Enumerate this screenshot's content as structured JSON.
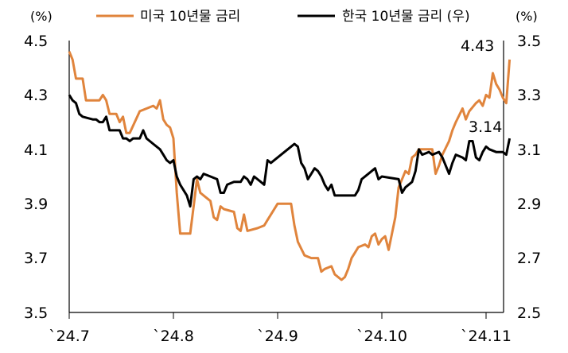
{
  "chart_data": {
    "type": "line",
    "legend_position": "top",
    "grid": false,
    "x_ticks": [
      "`24.7",
      "`24.8",
      "`24.9",
      "`24.10",
      "`24.11"
    ],
    "left_axis": {
      "unit": "(%)",
      "ylim": [
        3.5,
        4.5
      ],
      "ticks": [
        "4.5",
        "4.3",
        "4.1",
        "3.9",
        "3.7",
        "3.5"
      ]
    },
    "right_axis": {
      "unit": "(%)",
      "ylim": [
        2.5,
        3.5
      ],
      "ticks": [
        "3.5",
        "3.3",
        "3.1",
        "2.9",
        "2.7",
        "2.5"
      ]
    },
    "series": [
      {
        "name": "미국 10년물 금리",
        "axis": "left",
        "color": "#E0843C",
        "end_label": "4.43",
        "points": [
          [
            "2024-07-01",
            4.46
          ],
          [
            "2024-07-02",
            4.43
          ],
          [
            "2024-07-03",
            4.36
          ],
          [
            "2024-07-05",
            4.36
          ],
          [
            "2024-07-06",
            4.28
          ],
          [
            "2024-07-08",
            4.28
          ],
          [
            "2024-07-10",
            4.28
          ],
          [
            "2024-07-11",
            4.3
          ],
          [
            "2024-07-12",
            4.28
          ],
          [
            "2024-07-13",
            4.23
          ],
          [
            "2024-07-15",
            4.23
          ],
          [
            "2024-07-16",
            4.2
          ],
          [
            "2024-07-17",
            4.22
          ],
          [
            "2024-07-18",
            4.16
          ],
          [
            "2024-07-19",
            4.16
          ],
          [
            "2024-07-22",
            4.24
          ],
          [
            "2024-07-24",
            4.25
          ],
          [
            "2024-07-26",
            4.26
          ],
          [
            "2024-07-27",
            4.25
          ],
          [
            "2024-07-28",
            4.28
          ],
          [
            "2024-07-29",
            4.21
          ],
          [
            "2024-07-30",
            4.19
          ],
          [
            "2024-07-31",
            4.18
          ],
          [
            "2024-08-01",
            4.14
          ],
          [
            "2024-08-02",
            3.94
          ],
          [
            "2024-08-03",
            3.79
          ],
          [
            "2024-08-05",
            3.79
          ],
          [
            "2024-08-06",
            3.79
          ],
          [
            "2024-08-07",
            3.89
          ],
          [
            "2024-08-08",
            3.99
          ],
          [
            "2024-08-09",
            3.94
          ],
          [
            "2024-08-10",
            3.93
          ],
          [
            "2024-08-12",
            3.91
          ],
          [
            "2024-08-13",
            3.85
          ],
          [
            "2024-08-14",
            3.84
          ],
          [
            "2024-08-15",
            3.89
          ],
          [
            "2024-08-16",
            3.88
          ],
          [
            "2024-08-19",
            3.87
          ],
          [
            "2024-08-20",
            3.81
          ],
          [
            "2024-08-21",
            3.8
          ],
          [
            "2024-08-22",
            3.86
          ],
          [
            "2024-08-23",
            3.8
          ],
          [
            "2024-08-26",
            3.81
          ],
          [
            "2024-08-28",
            3.82
          ],
          [
            "2024-08-29",
            3.84
          ],
          [
            "2024-08-30",
            3.86
          ],
          [
            "2024-09-01",
            3.9
          ],
          [
            "2024-09-03",
            3.9
          ],
          [
            "2024-09-05",
            3.9
          ],
          [
            "2024-09-06",
            3.82
          ],
          [
            "2024-09-07",
            3.76
          ],
          [
            "2024-09-09",
            3.71
          ],
          [
            "2024-09-11",
            3.7
          ],
          [
            "2024-09-13",
            3.7
          ],
          [
            "2024-09-14",
            3.65
          ],
          [
            "2024-09-15",
            3.66
          ],
          [
            "2024-09-17",
            3.67
          ],
          [
            "2024-09-18",
            3.64
          ],
          [
            "2024-09-20",
            3.62
          ],
          [
            "2024-09-21",
            3.63
          ],
          [
            "2024-09-22",
            3.66
          ],
          [
            "2024-09-23",
            3.7
          ],
          [
            "2024-09-24",
            3.72
          ],
          [
            "2024-09-25",
            3.74
          ],
          [
            "2024-09-27",
            3.75
          ],
          [
            "2024-09-28",
            3.74
          ],
          [
            "2024-09-29",
            3.78
          ],
          [
            "2024-09-30",
            3.79
          ],
          [
            "2024-10-01",
            3.75
          ],
          [
            "2024-10-02",
            3.77
          ],
          [
            "2024-10-03",
            3.78
          ],
          [
            "2024-10-04",
            3.73
          ],
          [
            "2024-10-05",
            3.79
          ],
          [
            "2024-10-06",
            3.85
          ],
          [
            "2024-10-07",
            3.96
          ],
          [
            "2024-10-08",
            3.99
          ],
          [
            "2024-10-09",
            4.02
          ],
          [
            "2024-10-10",
            4.01
          ],
          [
            "2024-10-11",
            4.07
          ],
          [
            "2024-10-12",
            4.08
          ],
          [
            "2024-10-13",
            4.1
          ],
          [
            "2024-10-15",
            4.1
          ],
          [
            "2024-10-17",
            4.1
          ],
          [
            "2024-10-18",
            4.01
          ],
          [
            "2024-10-19",
            4.04
          ],
          [
            "2024-10-20",
            4.08
          ],
          [
            "2024-10-22",
            4.13
          ],
          [
            "2024-10-23",
            4.17
          ],
          [
            "2024-10-24",
            4.2
          ],
          [
            "2024-10-26",
            4.25
          ],
          [
            "2024-10-27",
            4.21
          ],
          [
            "2024-10-28",
            4.24
          ],
          [
            "2024-10-30",
            4.27
          ],
          [
            "2024-10-31",
            4.28
          ],
          [
            "2024-11-01",
            4.26
          ],
          [
            "2024-11-02",
            4.3
          ],
          [
            "2024-11-03",
            4.29
          ],
          [
            "2024-11-04",
            4.38
          ],
          [
            "2024-11-05",
            4.34
          ],
          [
            "2024-11-06",
            4.32
          ],
          [
            "2024-11-07",
            4.29
          ],
          [
            "2024-11-08",
            4.27
          ],
          [
            "2024-11-09",
            4.43
          ]
        ]
      },
      {
        "name": "한국 10년물 금리 (우)",
        "axis": "right",
        "color": "#000000",
        "end_label": "3.14",
        "points": [
          [
            "2024-07-01",
            3.3
          ],
          [
            "2024-07-02",
            3.28
          ],
          [
            "2024-07-03",
            3.27
          ],
          [
            "2024-07-04",
            3.23
          ],
          [
            "2024-07-05",
            3.22
          ],
          [
            "2024-07-08",
            3.21
          ],
          [
            "2024-07-09",
            3.21
          ],
          [
            "2024-07-10",
            3.2
          ],
          [
            "2024-07-11",
            3.2
          ],
          [
            "2024-07-12",
            3.22
          ],
          [
            "2024-07-13",
            3.17
          ],
          [
            "2024-07-15",
            3.17
          ],
          [
            "2024-07-16",
            3.17
          ],
          [
            "2024-07-17",
            3.14
          ],
          [
            "2024-07-18",
            3.14
          ],
          [
            "2024-07-19",
            3.13
          ],
          [
            "2024-07-20",
            3.14
          ],
          [
            "2024-07-22",
            3.14
          ],
          [
            "2024-07-23",
            3.17
          ],
          [
            "2024-07-24",
            3.14
          ],
          [
            "2024-07-26",
            3.12
          ],
          [
            "2024-07-28",
            3.1
          ],
          [
            "2024-07-29",
            3.08
          ],
          [
            "2024-07-30",
            3.06
          ],
          [
            "2024-07-31",
            3.05
          ],
          [
            "2024-08-01",
            3.06
          ],
          [
            "2024-08-02",
            3.0
          ],
          [
            "2024-08-03",
            2.97
          ],
          [
            "2024-08-05",
            2.93
          ],
          [
            "2024-08-06",
            2.89
          ],
          [
            "2024-08-07",
            2.99
          ],
          [
            "2024-08-08",
            3.0
          ],
          [
            "2024-08-09",
            2.99
          ],
          [
            "2024-08-10",
            3.01
          ],
          [
            "2024-08-12",
            3.0
          ],
          [
            "2024-08-14",
            2.99
          ],
          [
            "2024-08-15",
            2.94
          ],
          [
            "2024-08-16",
            2.94
          ],
          [
            "2024-08-17",
            2.97
          ],
          [
            "2024-08-19",
            2.98
          ],
          [
            "2024-08-21",
            2.98
          ],
          [
            "2024-08-22",
            3.0
          ],
          [
            "2024-08-23",
            2.99
          ],
          [
            "2024-08-24",
            2.97
          ],
          [
            "2024-08-25",
            3.0
          ],
          [
            "2024-08-27",
            2.98
          ],
          [
            "2024-08-28",
            2.97
          ],
          [
            "2024-08-29",
            3.06
          ],
          [
            "2024-08-30",
            3.05
          ],
          [
            "2024-09-01",
            3.07
          ],
          [
            "2024-09-03",
            3.09
          ],
          [
            "2024-09-05",
            3.11
          ],
          [
            "2024-09-06",
            3.12
          ],
          [
            "2024-09-07",
            3.11
          ],
          [
            "2024-09-08",
            3.05
          ],
          [
            "2024-09-09",
            3.03
          ],
          [
            "2024-09-10",
            2.99
          ],
          [
            "2024-09-11",
            3.01
          ],
          [
            "2024-09-12",
            3.03
          ],
          [
            "2024-09-13",
            3.02
          ],
          [
            "2024-09-14",
            3.0
          ],
          [
            "2024-09-15",
            2.97
          ],
          [
            "2024-09-16",
            2.95
          ],
          [
            "2024-09-17",
            2.97
          ],
          [
            "2024-09-18",
            2.93
          ],
          [
            "2024-09-22",
            2.93
          ],
          [
            "2024-09-24",
            2.93
          ],
          [
            "2024-09-25",
            2.95
          ],
          [
            "2024-09-26",
            2.99
          ],
          [
            "2024-09-28",
            3.01
          ],
          [
            "2024-09-30",
            3.03
          ],
          [
            "2024-10-01",
            2.99
          ],
          [
            "2024-10-02",
            3.0
          ],
          [
            "2024-10-07",
            2.99
          ],
          [
            "2024-10-08",
            2.94
          ],
          [
            "2024-10-09",
            2.96
          ],
          [
            "2024-10-11",
            2.98
          ],
          [
            "2024-10-12",
            3.02
          ],
          [
            "2024-10-13",
            3.1
          ],
          [
            "2024-10-14",
            3.08
          ],
          [
            "2024-10-16",
            3.09
          ],
          [
            "2024-10-17",
            3.08
          ],
          [
            "2024-10-19",
            3.09
          ],
          [
            "2024-10-20",
            3.07
          ],
          [
            "2024-10-21",
            3.04
          ],
          [
            "2024-10-22",
            3.01
          ],
          [
            "2024-10-23",
            3.05
          ],
          [
            "2024-10-24",
            3.08
          ],
          [
            "2024-10-26",
            3.07
          ],
          [
            "2024-10-27",
            3.06
          ],
          [
            "2024-10-28",
            3.13
          ],
          [
            "2024-10-29",
            3.13
          ],
          [
            "2024-10-30",
            3.07
          ],
          [
            "2024-10-31",
            3.06
          ],
          [
            "2024-11-01",
            3.09
          ],
          [
            "2024-11-02",
            3.11
          ],
          [
            "2024-11-03",
            3.1
          ],
          [
            "2024-11-05",
            3.09
          ],
          [
            "2024-11-07",
            3.09
          ],
          [
            "2024-11-08",
            3.08
          ],
          [
            "2024-11-09",
            3.14
          ]
        ]
      }
    ]
  }
}
